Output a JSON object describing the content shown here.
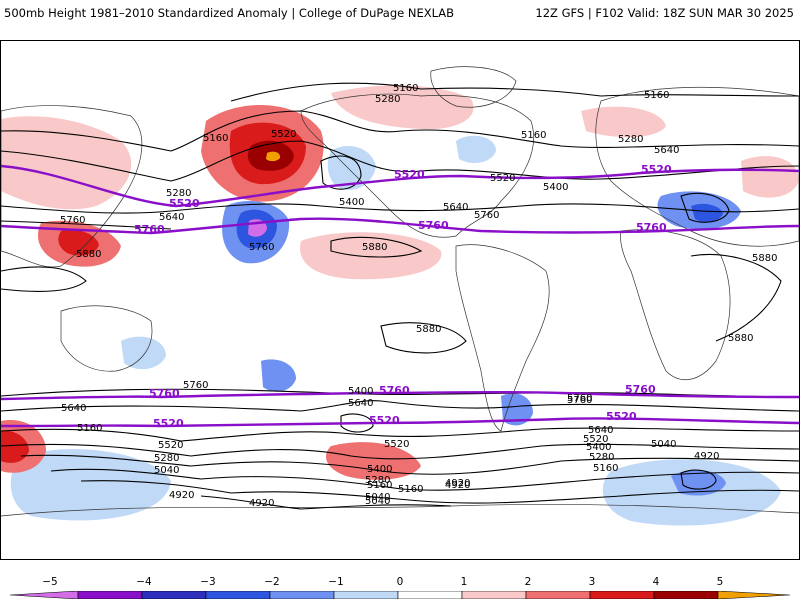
{
  "header": {
    "title": "500mb Height 1981–2010 Standardized Anomaly | College of DuPage NEXLAB",
    "run_info": "12Z GFS | F102 Valid: 18Z SUN MAR 30 2025"
  },
  "colors": {
    "highlight_contour": "#8a0fc9",
    "height_contour": "#000000",
    "land_outline": "#333333"
  },
  "colorbar": {
    "ticks": [
      "−5",
      "−4",
      "−3",
      "−2",
      "−1",
      "0",
      "1",
      "2",
      "3",
      "4",
      "5"
    ],
    "colors": [
      "#8a0fc9",
      "#2b2fbb",
      "#2e55e0",
      "#6f92f2",
      "#bfd9f7",
      "#ffffff",
      "#ffffff",
      "#f9c8c8",
      "#ee7070",
      "#d91b1b",
      "#9a0000",
      "#f0a000"
    ]
  },
  "labels": {
    "highlight": [
      "5520",
      "5520",
      "5520",
      "5760",
      "5760",
      "5760",
      "5760",
      "5760",
      "5760",
      "5520",
      "5520",
      "5520"
    ],
    "height": [
      "5160",
      "5160",
      "5280",
      "5160",
      "5520",
      "5280",
      "5640",
      "5400",
      "5520",
      "5400",
      "5640",
      "5760",
      "5160",
      "5280",
      "5640",
      "5760",
      "5760",
      "5880",
      "5880",
      "5880",
      "5880",
      "5880",
      "5760",
      "5640",
      "5640",
      "5760",
      "5400",
      "5160",
      "5520",
      "5280",
      "5040",
      "4920",
      "4920",
      "5160",
      "5040",
      "5520",
      "5280",
      "5160",
      "5400",
      "5040",
      "4920",
      "4920",
      "5280",
      "5400",
      "5520",
      "5640",
      "5760",
      "5160",
      "5040",
      "4920"
    ]
  }
}
